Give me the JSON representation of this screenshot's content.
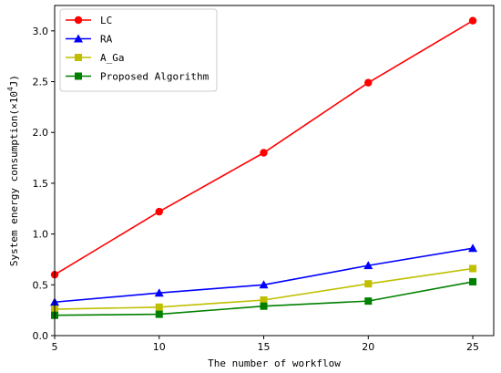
{
  "chart_data": {
    "type": "line",
    "title": "",
    "xlabel": "The number of workflow",
    "ylabel_main": "System energy consumption(×10",
    "ylabel_exp": "4",
    "ylabel_unit": "J)",
    "xlim": [
      5,
      26
    ],
    "ylim": [
      0,
      3.25
    ],
    "x": [
      5,
      10,
      15,
      20,
      25
    ],
    "xticks": [
      "5",
      "10",
      "15",
      "20",
      "25"
    ],
    "yticks": [
      "0.0",
      "0.5",
      "1.0",
      "1.5",
      "2.0",
      "2.5",
      "3.0"
    ],
    "grid": false,
    "legend_position": "top-left",
    "series": [
      {
        "name": "LC",
        "color": "#ff0000",
        "marker": "circle",
        "values": [
          0.6,
          1.22,
          1.8,
          2.49,
          3.1
        ]
      },
      {
        "name": "RA",
        "color": "#0000ff",
        "marker": "triangle",
        "values": [
          0.33,
          0.42,
          0.5,
          0.69,
          0.86
        ]
      },
      {
        "name": "A_Ga",
        "color": "#bfbf00",
        "marker": "square",
        "values": [
          0.26,
          0.28,
          0.35,
          0.51,
          0.66
        ]
      },
      {
        "name": "Proposed Algorithm",
        "color": "#008000",
        "marker": "square",
        "values": [
          0.2,
          0.21,
          0.29,
          0.34,
          0.53
        ]
      }
    ]
  }
}
